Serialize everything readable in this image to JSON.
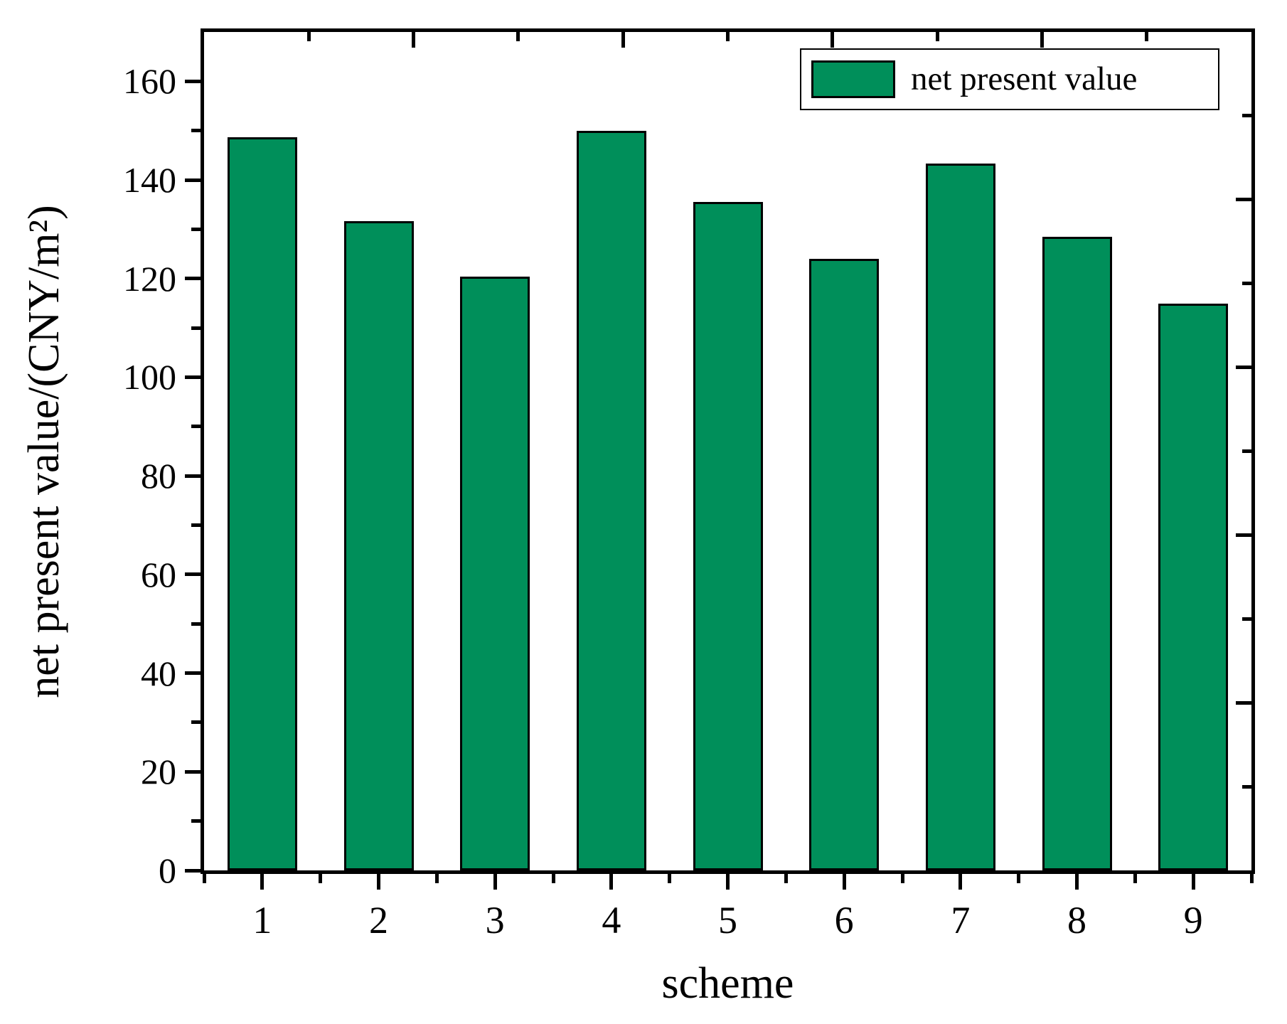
{
  "chart_data": {
    "type": "bar",
    "title": "",
    "categories": [
      "1",
      "2",
      "3",
      "4",
      "5",
      "6",
      "7",
      "8",
      "9"
    ],
    "series": [
      {
        "name": "net present value",
        "values": [
          148.6,
          131.6,
          120.4,
          149.9,
          135.6,
          124.0,
          143.3,
          128.5,
          114.9
        ]
      }
    ],
    "xlabel": "scheme",
    "ylabel": "net present value/(CNY/m²)",
    "ylim": [
      0,
      170
    ],
    "yticks_major": [
      0,
      20,
      40,
      60,
      80,
      100,
      120,
      140,
      160
    ],
    "yticks_minor": [
      10,
      30,
      50,
      70,
      90,
      110,
      130,
      150
    ],
    "grid": false,
    "legend": {
      "label": "net present value",
      "position": "top-right"
    },
    "colors": {
      "bar_fill": "#008F5A",
      "bar_border": "#000000",
      "axis": "#000000",
      "background": "#FFFFFF"
    }
  }
}
